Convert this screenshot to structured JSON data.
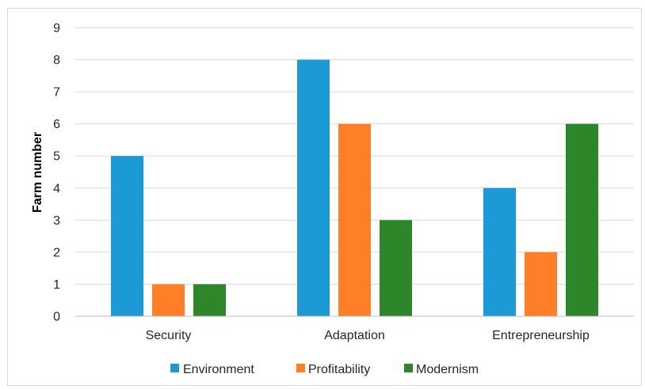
{
  "chart_data": {
    "type": "bar",
    "title": "",
    "xlabel": "",
    "ylabel": "Farm number",
    "categories": [
      "Security",
      "Adaptation",
      "Entrepreneurship"
    ],
    "series": [
      {
        "name": "Environment",
        "values": [
          5,
          8,
          4
        ],
        "color": "#1b9ad6"
      },
      {
        "name": "Profitability",
        "values": [
          1,
          6,
          2
        ],
        "color": "#fe7f27"
      },
      {
        "name": "Modernism",
        "values": [
          1,
          3,
          6
        ],
        "color": "#2e862b"
      }
    ],
    "ylim": [
      0,
      9
    ],
    "yticks": [
      "0",
      "1",
      "2",
      "3",
      "4",
      "5",
      "6",
      "7",
      "8",
      "9"
    ],
    "grid": true,
    "legend_position": "bottom",
    "gridline_color": "#d9d9d9",
    "axis_color": "#bfbfbf"
  }
}
